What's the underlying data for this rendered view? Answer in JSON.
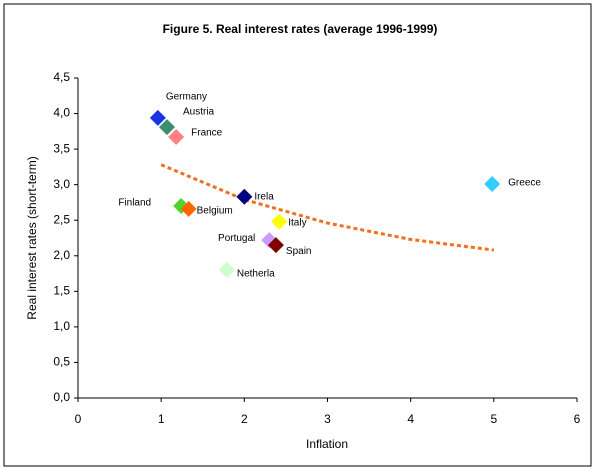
{
  "chart_data": {
    "type": "scatter",
    "title": "Figure 5. Real interest rates (average 1996-1999)",
    "x_label": "Inflation",
    "y_label": "Real interest rates (short-term)",
    "xlim": [
      0,
      6
    ],
    "xticks": [
      0,
      1,
      2,
      3,
      4,
      5,
      6
    ],
    "ylim": [
      0,
      4.5
    ],
    "yticks": [
      {
        "value": 0,
        "label": "0,0"
      },
      {
        "value": 0.5,
        "label": "0,5"
      },
      {
        "value": 1,
        "label": "1,0"
      },
      {
        "value": 1.5,
        "label": "1,5"
      },
      {
        "value": 2,
        "label": "2,0"
      },
      {
        "value": 2.5,
        "label": "2,5"
      },
      {
        "value": 3,
        "label": "3,0"
      },
      {
        "value": 3.5,
        "label": "3,5"
      },
      {
        "value": 4,
        "label": "4,0"
      },
      {
        "value": 4.5,
        "label": "4,5"
      }
    ],
    "series": [
      {
        "name": "Germany",
        "color": "#1a33e6",
        "x": [
          0.96
        ],
        "values": [
          3.94
        ]
      },
      {
        "name": "Austria",
        "color": "#3a8f6e",
        "x": [
          1.07
        ],
        "values": [
          3.81
        ]
      },
      {
        "name": "France",
        "color": "#ff8080",
        "x": [
          1.18
        ],
        "values": [
          3.67
        ]
      },
      {
        "name": "Irela",
        "color": "#000080",
        "x": [
          2.0
        ],
        "values": [
          2.83
        ]
      },
      {
        "name": "Greece",
        "color": "#33ccff",
        "x": [
          4.98
        ],
        "values": [
          3.01
        ]
      },
      {
        "name": "Finland",
        "color": "#4cd62b",
        "x": [
          1.24
        ],
        "values": [
          2.7
        ]
      },
      {
        "name": "Belgium",
        "color": "#ff6600",
        "x": [
          1.33
        ],
        "values": [
          2.66
        ]
      },
      {
        "name": "Italy",
        "color": "#ffff00",
        "x": [
          2.42
        ],
        "values": [
          2.48
        ]
      },
      {
        "name": "Portugal",
        "color": "#cc99ff",
        "x": [
          2.3
        ],
        "values": [
          2.22
        ]
      },
      {
        "name": "Spain",
        "color": "#800000",
        "x": [
          2.38
        ],
        "values": [
          2.15
        ]
      },
      {
        "name": "Netherla",
        "color": "#ccffcc",
        "x": [
          1.79
        ],
        "values": [
          1.8
        ]
      }
    ],
    "trendline": {
      "color": "#f07020",
      "x": [
        1,
        2,
        3,
        4,
        5
      ],
      "values": [
        3.28,
        2.79,
        2.46,
        2.23,
        2.08
      ]
    }
  }
}
